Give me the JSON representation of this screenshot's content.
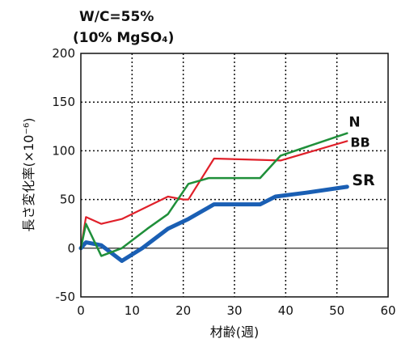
{
  "chart_data": {
    "type": "line",
    "title": "W/C=55%",
    "subtitle": "(10% MgSO₄)",
    "xlabel": "材齢(週)",
    "ylabel": "長さ変化率(×10⁻⁶)",
    "xlim": [
      0,
      60
    ],
    "ylim": [
      -50,
      200
    ],
    "x_ticks": [
      "0",
      "10",
      "20",
      "30",
      "40",
      "50",
      "60"
    ],
    "y_ticks": [
      "-50",
      "0",
      "50",
      "100",
      "150",
      "200"
    ],
    "grid": true,
    "series": [
      {
        "name": "N",
        "color": "#1f8f3a",
        "points": [
          [
            0,
            0
          ],
          [
            1,
            25
          ],
          [
            4,
            -8
          ],
          [
            8,
            0
          ],
          [
            13,
            20
          ],
          [
            17,
            35
          ],
          [
            21,
            66
          ],
          [
            25,
            72
          ],
          [
            35,
            72
          ],
          [
            39,
            95
          ],
          [
            52,
            118
          ]
        ]
      },
      {
        "name": "BB",
        "color": "#e0202a",
        "points": [
          [
            0,
            0
          ],
          [
            1,
            32
          ],
          [
            4,
            25
          ],
          [
            8,
            30
          ],
          [
            17,
            53
          ],
          [
            20,
            50
          ],
          [
            21,
            50
          ],
          [
            26,
            92
          ],
          [
            39,
            90
          ],
          [
            52,
            110
          ]
        ]
      },
      {
        "name": "SR",
        "color": "#1a5fb4",
        "points": [
          [
            0,
            0
          ],
          [
            1,
            6
          ],
          [
            4,
            3
          ],
          [
            8,
            -13
          ],
          [
            12,
            0
          ],
          [
            17,
            20
          ],
          [
            21,
            30
          ],
          [
            26,
            45
          ],
          [
            35,
            45
          ],
          [
            38,
            53
          ],
          [
            44,
            57
          ],
          [
            52,
            63
          ]
        ]
      }
    ]
  }
}
